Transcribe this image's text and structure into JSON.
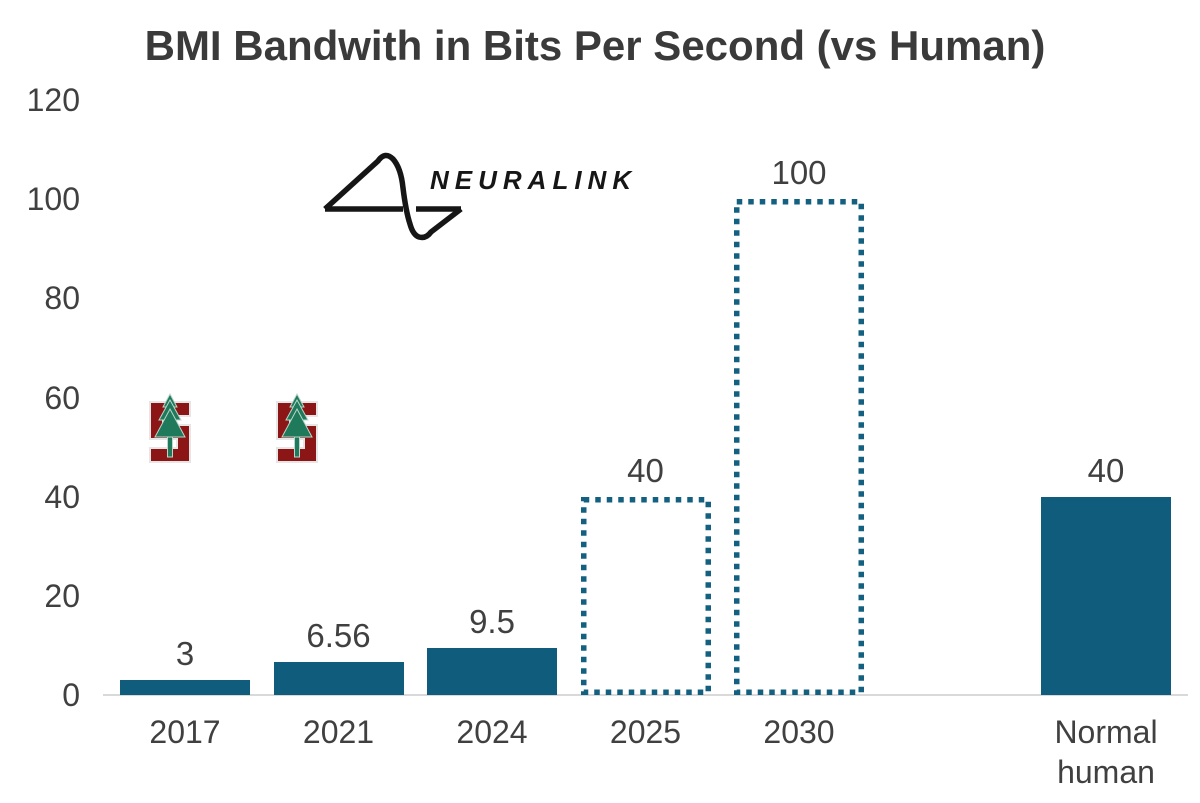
{
  "title": "BMI Bandwith in Bits Per Second (vs Human)",
  "colors": {
    "bar_fill": "#0f5c7d",
    "bar_dotted_stroke": "#136080",
    "text": "#404040",
    "title_text": "#3a3a3a",
    "axis_line": "#d9d9d9",
    "stanford_red": "#8C1515",
    "tree_green": "#1e7a5a",
    "logo_black": "#161616"
  },
  "chart_data": {
    "type": "bar",
    "title": "BMI Bandwith in Bits Per Second (vs Human)",
    "xlabel": "",
    "ylabel": "",
    "ylim": [
      0,
      120
    ],
    "yticks": [
      0,
      20,
      40,
      60,
      80,
      100,
      120
    ],
    "grid": false,
    "legend": null,
    "bars": [
      {
        "category": "2017",
        "value": 3,
        "label": "3",
        "style": "solid",
        "slot": 0
      },
      {
        "category": "2021",
        "value": 6.56,
        "label": "6.56",
        "style": "solid",
        "slot": 1
      },
      {
        "category": "2024",
        "value": 9.5,
        "label": "9.5",
        "style": "solid",
        "slot": 2
      },
      {
        "category": "2025",
        "value": 40,
        "label": "40",
        "style": "dotted",
        "slot": 3
      },
      {
        "category": "2030",
        "value": 100,
        "label": "100",
        "style": "dotted",
        "slot": 4
      },
      {
        "category": "Normal human",
        "value": 40,
        "label": "40",
        "style": "solid",
        "slot": 6
      }
    ],
    "annotations": [
      "Neuralink logomark and wordmark in upper plot area",
      "Two Stanford block-S tree logos above the 2017 and 2021 bars"
    ]
  },
  "logos": {
    "neuralink_text": "NEURALINK"
  }
}
